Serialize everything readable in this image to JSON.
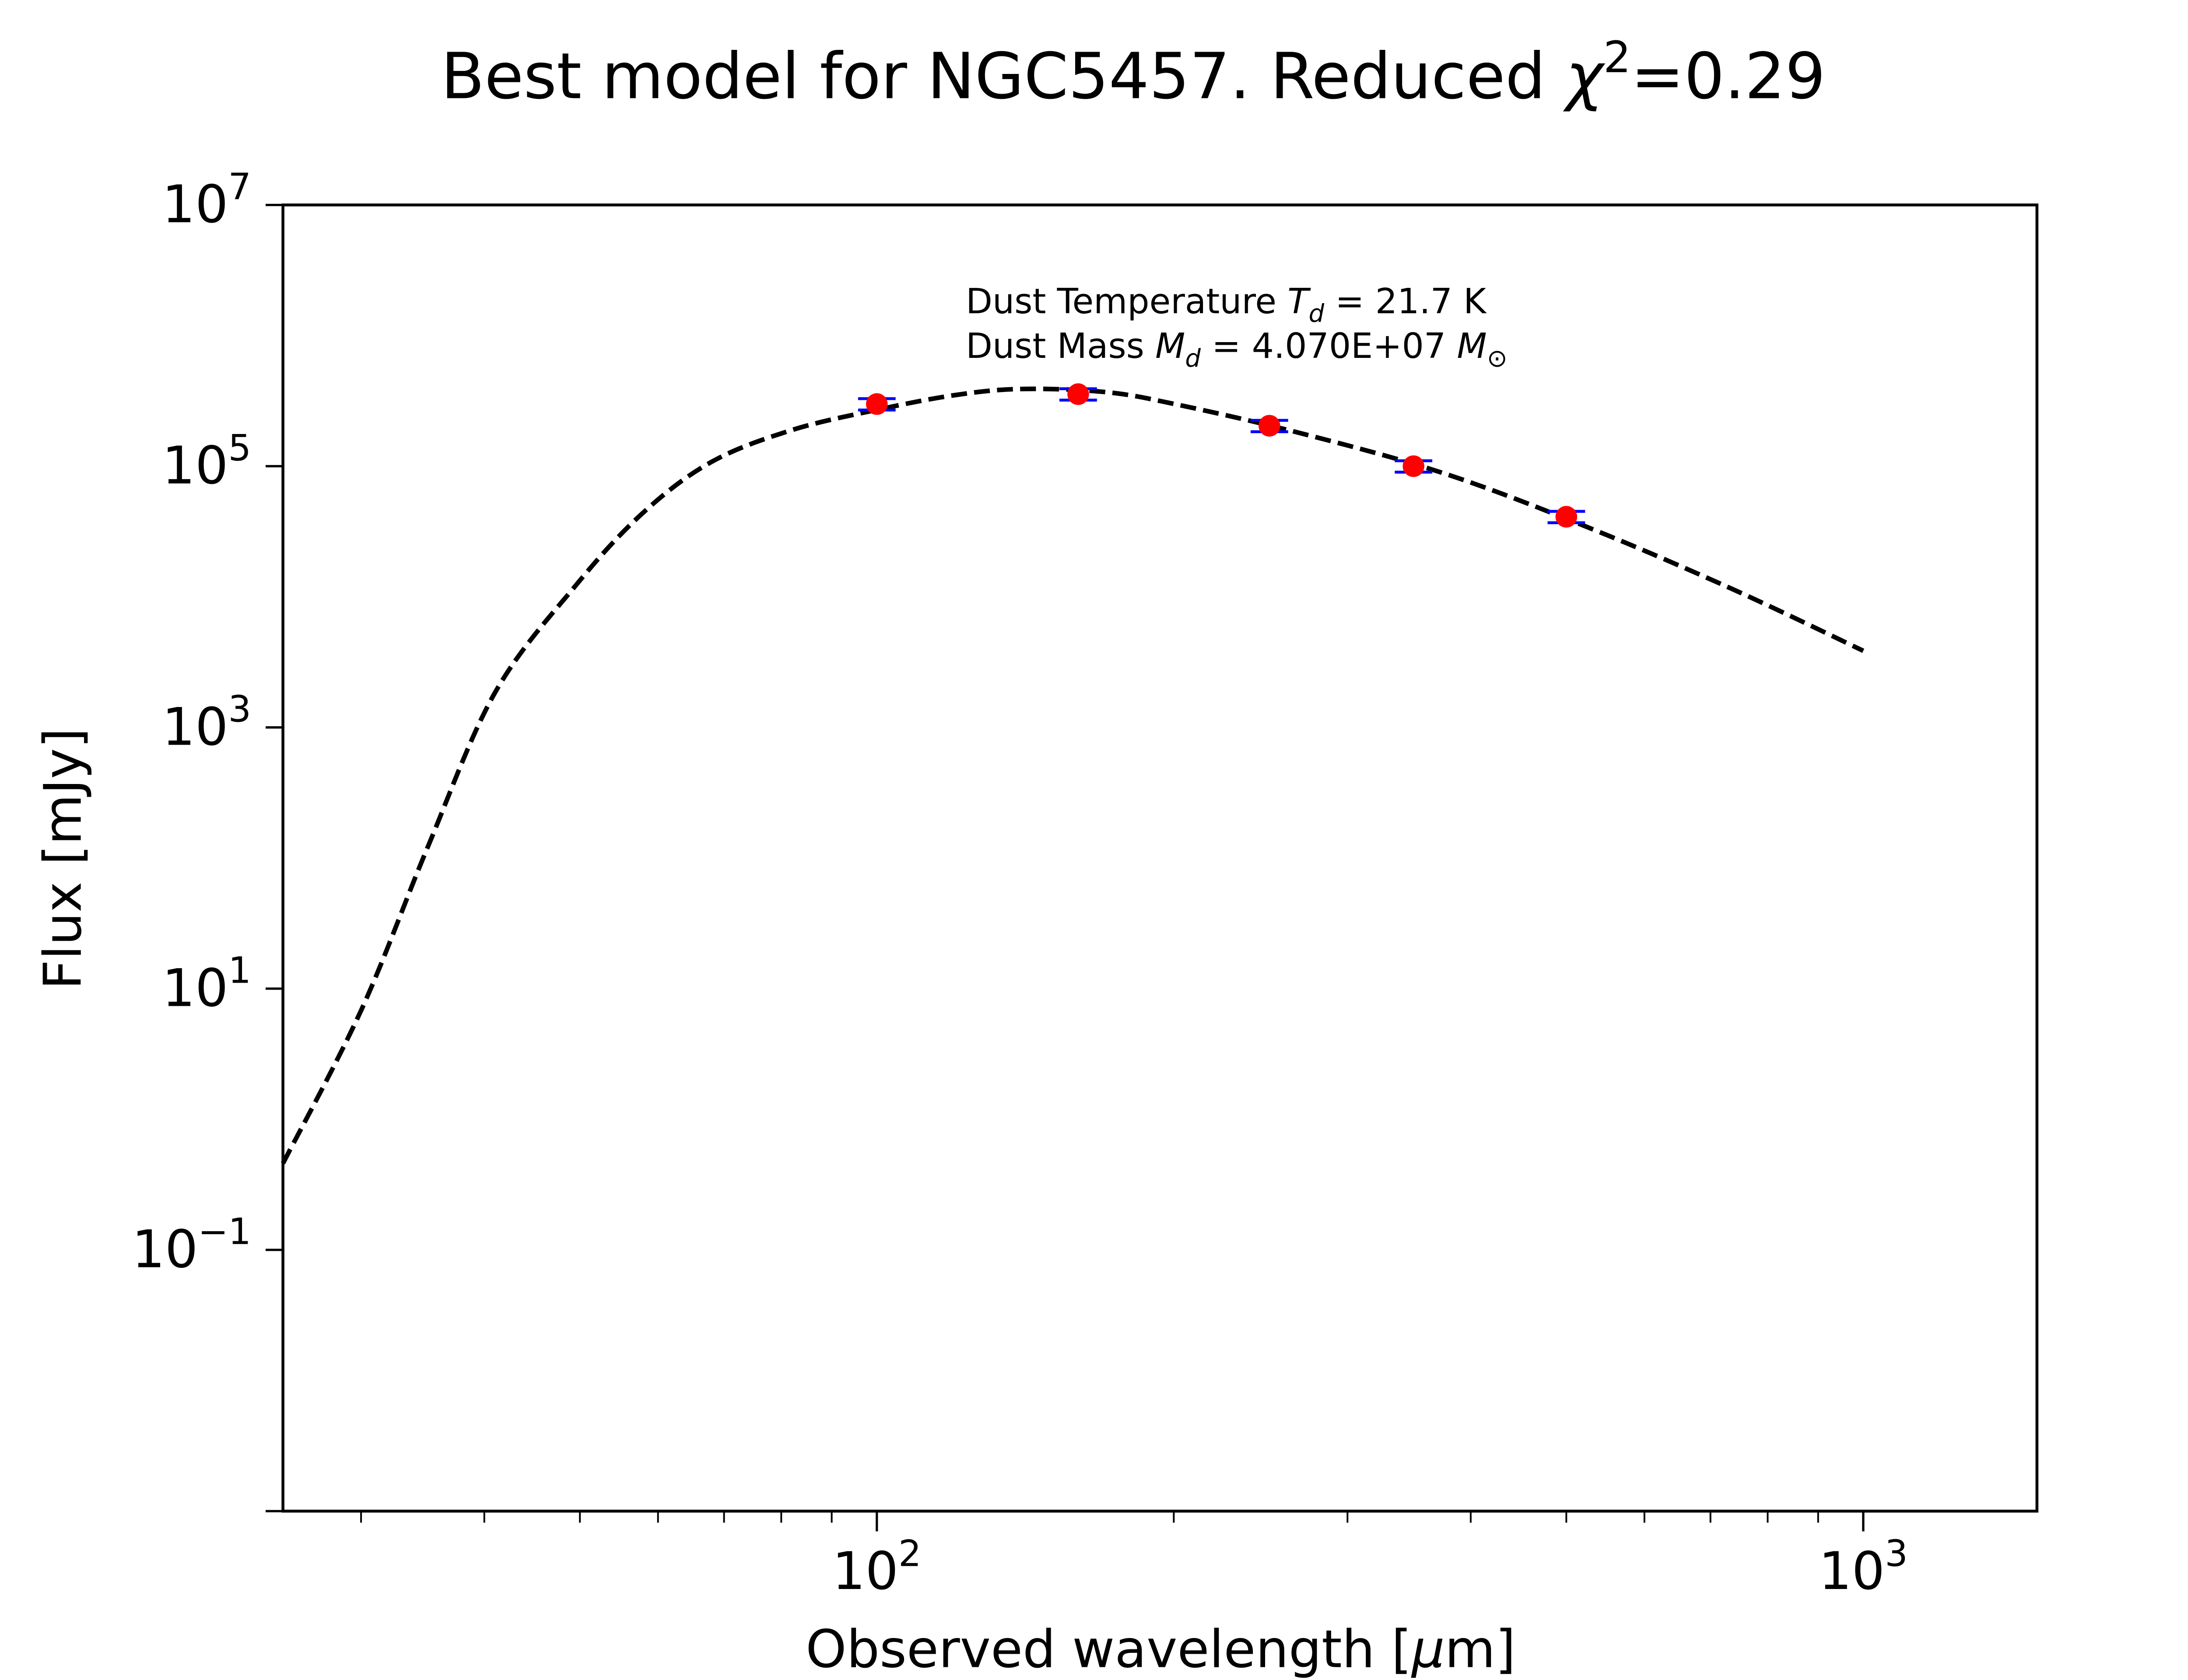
{
  "chart_data": {
    "type": "line",
    "title": {
      "prefix": "Best model for NGC5457. Reduced ",
      "chi_symbol": "χ",
      "chi_exponent": "2",
      "suffix": "=0.29"
    },
    "xlabel": {
      "prefix": "Observed wavelength [",
      "mu": "μ",
      "suffix": "m]"
    },
    "ylabel": "Flux [mJy]",
    "xscale": "log",
    "yscale": "log",
    "xlim": [
      25,
      1500
    ],
    "ylim": [
      0.001,
      10000000
    ],
    "grid": false,
    "x_major_ticks": [
      {
        "value": 100,
        "base": "10",
        "exp": "2"
      },
      {
        "value": 1000,
        "base": "10",
        "exp": "3"
      }
    ],
    "x_minor_ticks": [
      30,
      40,
      50,
      60,
      70,
      80,
      90,
      200,
      300,
      400,
      500,
      600,
      700,
      800,
      900
    ],
    "y_major_ticks": [
      {
        "value": 10000000,
        "base": "10",
        "exp": "7"
      },
      {
        "value": 100000,
        "base": "10",
        "exp": "5"
      },
      {
        "value": 1000,
        "base": "10",
        "exp": "3"
      },
      {
        "value": 10,
        "base": "10",
        "exp": "1"
      },
      {
        "value": 0.1,
        "base": "10",
        "exp": "−1"
      },
      {
        "value": 0.001,
        "base": "",
        "exp": ""
      }
    ],
    "annotation": {
      "line1": {
        "prefix": "Dust Temperature ",
        "sym": "T",
        "sub": "d",
        "value": " = 21.7 K"
      },
      "line2": {
        "prefix": "Dust Mass ",
        "sym": "M",
        "sub": "d",
        "value": " = 4.070E+07 ",
        "unit_sym": "M",
        "unit_sub": "⊙"
      }
    },
    "dust_temperature_K": 21.7,
    "dust_mass_Msun": 40700000.0,
    "reduced_chi2": 0.29,
    "series": [
      {
        "name": "best-fit model",
        "style": "dashed",
        "color": "#000000",
        "x": [
          25,
          30,
          35,
          41,
          49.6,
          58,
          68,
          82,
          100,
          120,
          140,
          170,
          200,
          268,
          376,
          526,
          736,
          1000
        ],
        "y": [
          0.46,
          6.8,
          118,
          1840,
          12400,
          44300,
          108000,
          189000,
          270000,
          350000,
          390000,
          370000,
          300000,
          180000,
          88000,
          34000,
          11500,
          3860
        ]
      },
      {
        "name": "observed photometry",
        "style": "markers",
        "marker_color": "#ff0000",
        "errorbar_color": "#0000ff",
        "x": [
          100,
          160,
          250,
          350,
          500
        ],
        "y": [
          299000,
          356000,
          204000,
          100000,
          41000
        ],
        "yerr_frac": [
          0.1,
          0.1,
          0.1,
          0.1,
          0.1
        ]
      }
    ]
  }
}
